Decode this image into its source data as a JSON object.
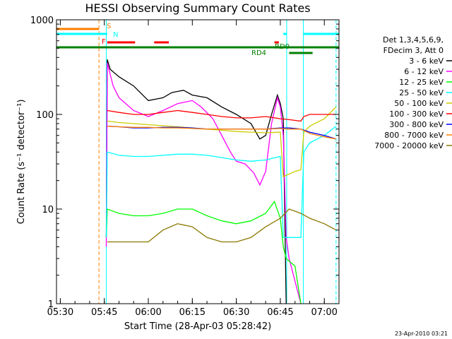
{
  "chart_data": {
    "type": "line",
    "title": "HESSI Observing Summary Count Rates",
    "xlabel": "Start Time (28-Apr-03 05:28:42)",
    "ylabel": "Count Rate (s⁻¹ detector⁻¹)",
    "y_scale": "log",
    "ylim": [
      1,
      1000
    ],
    "xlim": [
      "05:28:42",
      "07:05:00"
    ],
    "x_ticks": [
      "05:30",
      "05:45",
      "06:00",
      "06:15",
      "06:30",
      "06:45",
      "07:00"
    ],
    "y_ticks": [
      "1",
      "10",
      "100",
      "1000"
    ],
    "grid": false,
    "legend_placement": "right",
    "legend_header": [
      "Det 1,3,4,5,6,9,",
      "FDecim 3, Att 0"
    ],
    "footer_date": "23-Apr-2010 03:21",
    "series": [
      {
        "name": "3 - 6 keV",
        "color": "#000000",
        "x": [
          "05:45:40",
          "05:46",
          "05:47",
          "05:50",
          "05:55",
          "06:00",
          "06:05",
          "06:08",
          "06:12",
          "06:15",
          "06:20",
          "06:25",
          "06:30",
          "06:35",
          "06:38",
          "06:40",
          "06:42",
          "06:44",
          "06:45",
          "06:46",
          "06:47"
        ],
        "y": [
          5,
          380,
          300,
          250,
          200,
          140,
          150,
          170,
          180,
          160,
          150,
          120,
          100,
          80,
          55,
          60,
          100,
          160,
          130,
          90,
          1
        ]
      },
      {
        "name": "6 - 12 keV",
        "color": "#ff00ff",
        "x": [
          "05:45:40",
          "05:46",
          "05:48",
          "05:50",
          "05:55",
          "06:00",
          "06:05",
          "06:10",
          "06:15",
          "06:18",
          "06:22",
          "06:25",
          "06:28",
          "06:30",
          "06:33",
          "06:36",
          "06:38",
          "06:40",
          "06:42",
          "06:44",
          "06:45",
          "06:46",
          "06:47",
          "06:48",
          "06:52"
        ],
        "y": [
          4,
          350,
          200,
          150,
          110,
          95,
          110,
          130,
          140,
          120,
          90,
          60,
          40,
          32,
          30,
          24,
          18,
          25,
          80,
          150,
          120,
          60,
          5,
          3,
          1
        ]
      },
      {
        "name": "12 - 25 keV",
        "color": "#00ff00",
        "x": [
          "05:45:40",
          "05:46",
          "05:50",
          "05:55",
          "06:00",
          "06:05",
          "06:10",
          "06:15",
          "06:20",
          "06:25",
          "06:30",
          "06:35",
          "06:40",
          "06:43",
          "06:45",
          "06:46",
          "06:47",
          "06:50",
          "06:52"
        ],
        "y": [
          5,
          10,
          9,
          8.5,
          8.5,
          9,
          10,
          10,
          8.5,
          7.5,
          7,
          7.5,
          9,
          12,
          8,
          4,
          3,
          2.5,
          1
        ]
      },
      {
        "name": "25 - 50 keV",
        "color": "#00ffff",
        "x": [
          "05:45:40",
          "05:46",
          "05:50",
          "05:55",
          "06:00",
          "06:05",
          "06:10",
          "06:15",
          "06:20",
          "06:25",
          "06:30",
          "06:35",
          "06:40",
          "06:45",
          "06:46",
          "06:48",
          "06:52",
          "06:53",
          "06:55",
          "07:00",
          "07:04"
        ],
        "y": [
          5,
          40,
          37,
          36,
          36,
          37,
          38,
          38,
          37,
          35,
          33,
          32,
          33,
          36,
          5,
          5,
          5,
          40,
          50,
          60,
          75
        ]
      },
      {
        "name": "50 - 100 keV",
        "color": "#cccc00",
        "x": [
          "05:46",
          "05:50",
          "05:55",
          "06:00",
          "06:05",
          "06:10",
          "06:15",
          "06:20",
          "06:25",
          "06:30",
          "06:35",
          "06:40",
          "06:45",
          "06:46",
          "06:50",
          "06:52",
          "06:53",
          "06:55",
          "07:00",
          "07:04"
        ],
        "y": [
          85,
          82,
          80,
          78,
          76,
          74,
          72,
          70,
          68,
          66,
          65,
          64,
          65,
          22,
          25,
          26,
          65,
          75,
          90,
          120
        ]
      },
      {
        "name": "100 - 300 keV",
        "color": "#ff0000",
        "x": [
          "05:46",
          "05:50",
          "05:55",
          "06:00",
          "06:05",
          "06:10",
          "06:15",
          "06:20",
          "06:25",
          "06:30",
          "06:35",
          "06:40",
          "06:45",
          "06:48",
          "06:52",
          "06:53",
          "06:55",
          "07:00",
          "07:04"
        ],
        "y": [
          110,
          105,
          100,
          100,
          105,
          110,
          105,
          100,
          95,
          92,
          92,
          95,
          90,
          88,
          85,
          95,
          100,
          100,
          100
        ]
      },
      {
        "name": "300 - 800 keV",
        "color": "#0000ff",
        "x": [
          "05:46",
          "05:50",
          "05:55",
          "06:00",
          "06:05",
          "06:10",
          "06:15",
          "06:20",
          "06:25",
          "06:30",
          "06:35",
          "06:40",
          "06:45",
          "06:48",
          "06:52",
          "06:55",
          "07:00",
          "07:04"
        ],
        "y": [
          75,
          74,
          72,
          72,
          73,
          73,
          72,
          70,
          70,
          70,
          70,
          70,
          72,
          72,
          70,
          65,
          60,
          55
        ]
      },
      {
        "name": "800 - 7000 keV",
        "color": "#ff8000",
        "x": [
          "05:46",
          "05:50",
          "05:55",
          "06:00",
          "06:05",
          "06:10",
          "06:15",
          "06:20",
          "06:25",
          "06:30",
          "06:35",
          "06:40",
          "06:45",
          "06:48",
          "06:52",
          "06:55",
          "07:00",
          "07:04"
        ],
        "y": [
          75,
          74,
          73,
          73,
          72,
          72,
          71,
          70,
          70,
          70,
          70,
          70,
          71,
          70,
          70,
          63,
          58,
          55
        ]
      },
      {
        "name": "7000 - 20000 keV",
        "color": "#8b7800",
        "x": [
          "05:46",
          "05:50",
          "05:55",
          "06:00",
          "06:05",
          "06:10",
          "06:15",
          "06:20",
          "06:25",
          "06:30",
          "06:35",
          "06:40",
          "06:45",
          "06:48",
          "06:52",
          "06:55",
          "07:00",
          "07:04"
        ],
        "y": [
          4.5,
          4.5,
          4.5,
          4.5,
          6,
          7,
          6.5,
          5,
          4.5,
          4.5,
          5,
          6.5,
          8,
          10,
          9,
          8,
          7,
          6
        ]
      }
    ],
    "flag_bars": [
      {
        "label": "S",
        "color": "#ff8000",
        "segments": [
          [
            "05:28:42",
            "05:43:10"
          ]
        ]
      },
      {
        "label": "N",
        "color": "#00ffff",
        "segments": [
          [
            "05:28:42",
            "05:46:00"
          ],
          [
            "06:46:00",
            "06:47:10"
          ],
          [
            "06:52:50",
            "07:05:00"
          ]
        ]
      },
      {
        "label": "F",
        "color": "#ff0000",
        "segments": [
          [
            "05:46:00",
            "05:55:30"
          ],
          [
            "06:02:00",
            "06:07:00"
          ],
          [
            "06:43:00",
            "06:44:30"
          ]
        ]
      },
      {
        "label": "RD0",
        "color": "#008000",
        "segments": [
          [
            "05:28:42",
            "07:05:00"
          ]
        ]
      },
      {
        "label": "RD4",
        "color": "#008000",
        "segments": [
          [
            "06:48:00",
            "06:56:00"
          ]
        ]
      }
    ],
    "vertical_markers": [
      {
        "x": "05:43:10",
        "color": "#ff8000",
        "style": "dashed"
      },
      {
        "x": "05:45:40",
        "color": "#00ffff",
        "style": "solid"
      },
      {
        "x": "06:47:10",
        "color": "#00ffff",
        "style": "solid"
      },
      {
        "x": "06:52:50",
        "color": "#00ffff",
        "style": "solid"
      },
      {
        "x": "07:04:00",
        "color": "#00ffff",
        "style": "dashed"
      }
    ]
  }
}
